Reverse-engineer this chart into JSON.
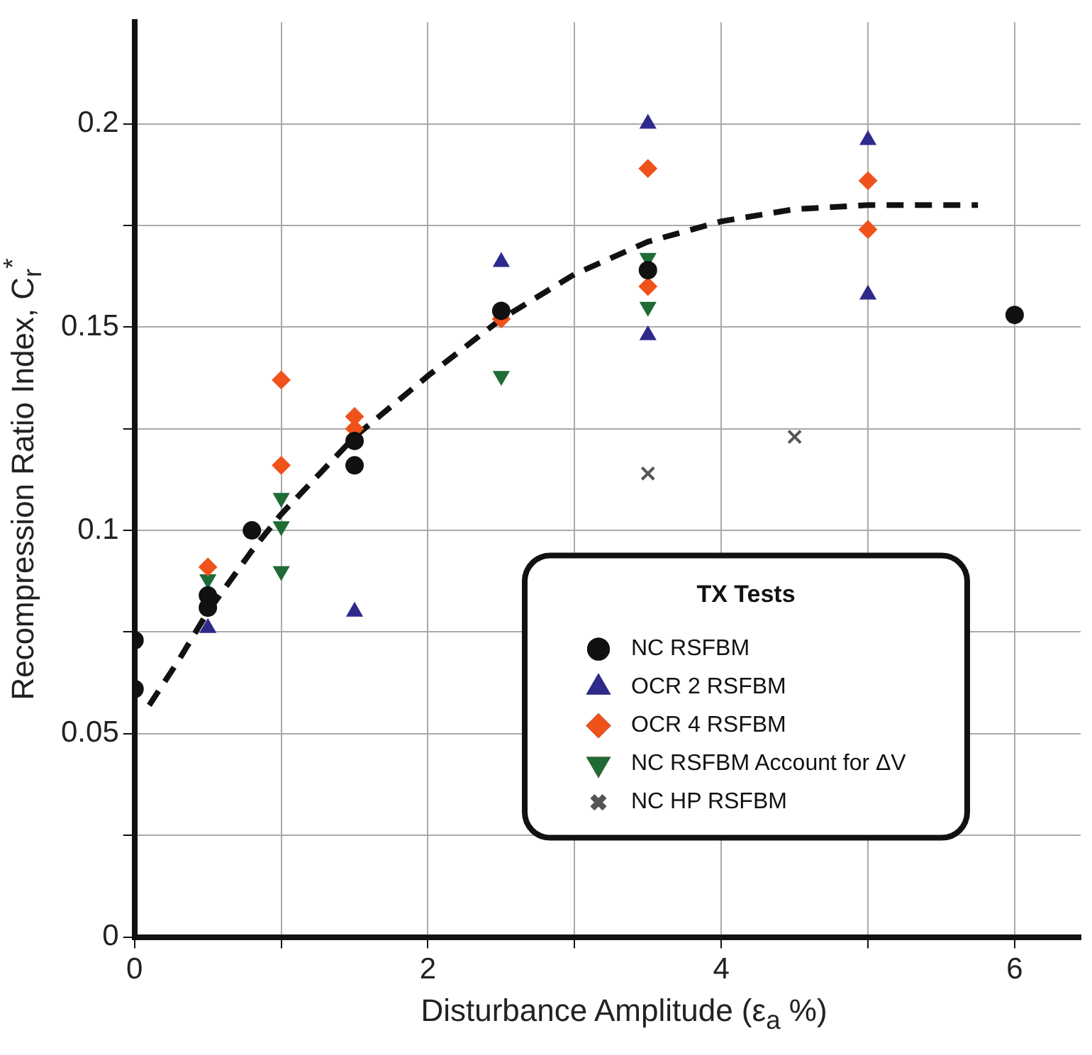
{
  "chart_data": {
    "type": "scatter",
    "xlabel": "Disturbance Amplitude (ε$_{a}$ %)",
    "ylabel": "Recompression Ratio Index, C$_{r}$$^{*}$",
    "legend_title": "TX Tests",
    "legend": "bottom right",
    "grid": true,
    "xlim": [
      0,
      6.45
    ],
    "ylim": [
      0,
      0.225
    ],
    "xticks": [
      0,
      {
        "value": 1,
        "label": null
      },
      2,
      {
        "value": 3,
        "label": null
      },
      4,
      {
        "value": 5,
        "label": null
      },
      6
    ],
    "yticks": [
      0,
      {
        "value": 0.025,
        "label": null
      },
      0.05,
      {
        "value": 0.075,
        "label": null
      },
      0.1,
      {
        "value": 0.125,
        "label": null
      },
      0.15,
      {
        "value": 0.175,
        "label": null
      },
      0.2
    ],
    "series": [
      {
        "name": "NC RSFBM",
        "color": "#111111",
        "marker": "circle",
        "x": [
          0,
          0,
          0.5,
          0.5,
          0.8,
          1.5,
          1.5,
          2.5,
          3.5,
          6
        ],
        "values": [
          0.073,
          0.061,
          0.084,
          0.081,
          0.1,
          0.122,
          0.116,
          0.154,
          0.164,
          0.153
        ]
      },
      {
        "name": "OCR 2 RSFBM",
        "color": "#2e2a8c",
        "marker": "triangle",
        "x": [
          0.5,
          1.5,
          2.5,
          3.5,
          3.5,
          5,
          5
        ],
        "values": [
          0.076,
          0.08,
          0.166,
          0.2,
          0.148,
          0.196,
          0.158
        ]
      },
      {
        "name": "OCR 4 RSFBM",
        "color": "#f0521c",
        "marker": "diamond",
        "x": [
          0.5,
          1,
          1,
          1.5,
          1.5,
          2.5,
          3.5,
          3.5,
          5,
          5
        ],
        "values": [
          0.091,
          0.137,
          0.116,
          0.128,
          0.125,
          0.152,
          0.189,
          0.16,
          0.186,
          0.174
        ]
      },
      {
        "name": "NC RSFBM Account for ΔV",
        "color": "#1e6b35",
        "marker": "triangle-down",
        "x": [
          0.5,
          1,
          1,
          1,
          2.5,
          3.5,
          3.5
        ],
        "values": [
          0.088,
          0.108,
          0.101,
          0.09,
          0.138,
          0.167,
          0.155
        ]
      },
      {
        "name": "NC HP RSFBM",
        "color": "#555555",
        "marker": "cross",
        "x": [
          3.5,
          4.5
        ],
        "values": [
          0.114,
          0.123
        ]
      },
      {
        "type": "line",
        "color": "#111111",
        "marker": "none",
        "line_style": "dashed",
        "x": [
          0.1,
          0.3,
          0.5,
          0.8,
          1,
          1.5,
          2,
          2.5,
          3,
          3.5,
          4,
          4.5,
          5,
          5.75
        ],
        "values": [
          0.057,
          0.068,
          0.08,
          0.095,
          0.104,
          0.123,
          0.138,
          0.152,
          0.163,
          0.171,
          0.176,
          0.179,
          0.18,
          0.18
        ]
      }
    ]
  }
}
